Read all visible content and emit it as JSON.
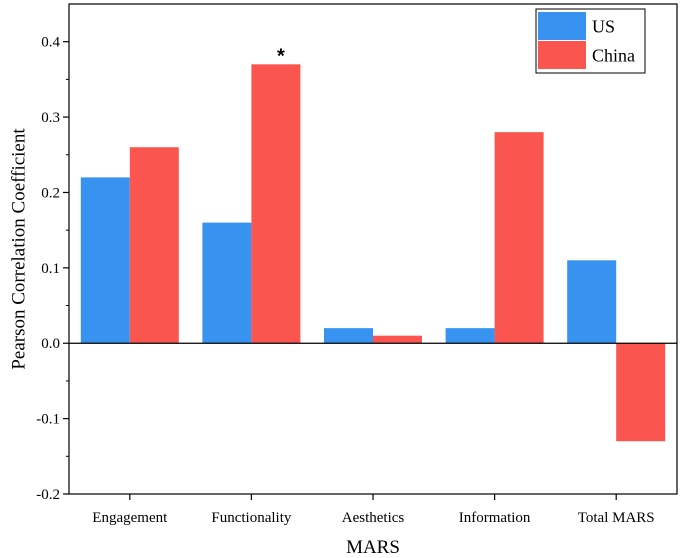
{
  "chart_data": {
    "type": "bar",
    "title": "",
    "xlabel": "MARS",
    "ylabel": "Pearson Correlation Coefficient",
    "categories": [
      "Engagement",
      "Functionality",
      "Aesthetics",
      "Information",
      "Total MARS"
    ],
    "series": [
      {
        "name": "US",
        "color": "#3792f0",
        "values": [
          0.22,
          0.16,
          0.02,
          0.02,
          0.11
        ]
      },
      {
        "name": "China",
        "color": "#fa564f",
        "values": [
          0.26,
          0.37,
          0.01,
          0.28,
          -0.13
        ]
      }
    ],
    "ylim": [
      -0.2,
      0.45
    ],
    "yticks": [
      -0.2,
      -0.1,
      0.0,
      0.1,
      0.2,
      0.3,
      0.4
    ],
    "ytick_labels": [
      "-0.2",
      "-0.1",
      "0.0",
      "0.1",
      "0.2",
      "0.3",
      "0.4"
    ],
    "legend_position": "top-right",
    "annotations": [
      {
        "text": "*",
        "category": "Functionality",
        "series": "China"
      }
    ]
  }
}
